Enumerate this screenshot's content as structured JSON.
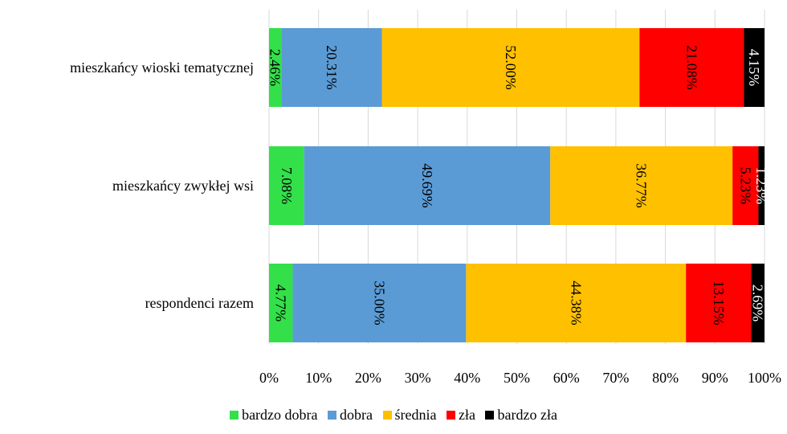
{
  "chart_data": {
    "type": "bar",
    "orientation": "horizontal",
    "stacked": "percent",
    "categories": [
      "mieszkańcy wioski tematycznej",
      "mieszkańcy zwykłej wsi",
      "respondenci razem"
    ],
    "series": [
      {
        "name": "bardzo dobra",
        "color": "#33e04a",
        "values": [
          2.46,
          7.08,
          4.77
        ],
        "labels": [
          "2.46%",
          "7.08%",
          "4.77%"
        ]
      },
      {
        "name": "dobra",
        "color": "#5b9bd5",
        "values": [
          20.31,
          49.69,
          35.0
        ],
        "labels": [
          "20.31%",
          "49.69%",
          "35.00%"
        ]
      },
      {
        "name": "średnia",
        "color": "#ffc000",
        "values": [
          52.0,
          36.77,
          44.38
        ],
        "labels": [
          "52.00%",
          "36.77%",
          "44.38%"
        ]
      },
      {
        "name": "zła",
        "color": "#ff0000",
        "values": [
          21.08,
          5.23,
          13.15
        ],
        "labels": [
          "21.08%",
          "5.23%",
          "13.15%"
        ]
      },
      {
        "name": "bardzo zła",
        "color": "#000000",
        "values": [
          4.15,
          1.23,
          2.69
        ],
        "labels": [
          "4.15%",
          "1.23%",
          "2.69%"
        ]
      }
    ],
    "x_ticks": [
      "0%",
      "10%",
      "20%",
      "30%",
      "40%",
      "50%",
      "60%",
      "70%",
      "80%",
      "90%",
      "100%"
    ],
    "xlim": [
      0,
      100
    ],
    "grid": "vertical",
    "legend": "bottom"
  }
}
